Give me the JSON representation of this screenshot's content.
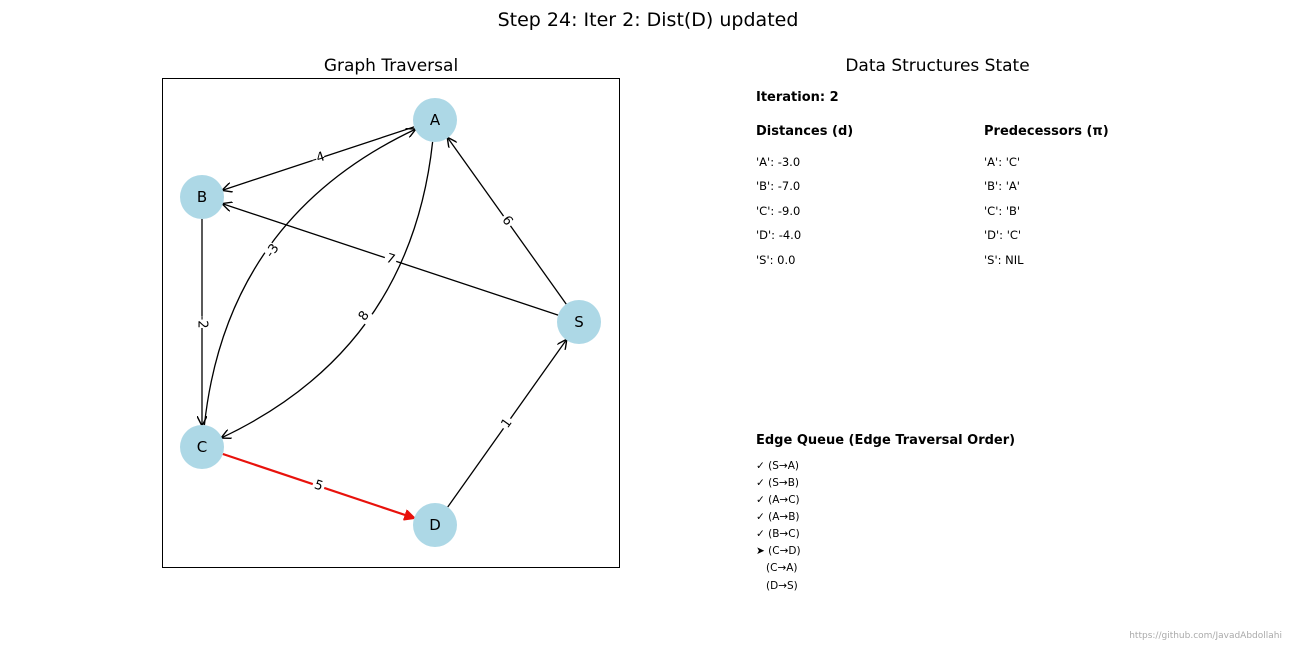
{
  "title": "Step 24: Iter 2: Dist(D) updated",
  "graph_panel": {
    "title": "Graph Traversal",
    "nodes": [
      {
        "id": "A"
      },
      {
        "id": "B"
      },
      {
        "id": "C"
      },
      {
        "id": "D"
      },
      {
        "id": "S"
      }
    ],
    "edges": [
      {
        "from": "A",
        "to": "B",
        "weight": "-4",
        "highlight": false
      },
      {
        "from": "A",
        "to": "C",
        "weight": "8",
        "highlight": false
      },
      {
        "from": "C",
        "to": "A",
        "weight": "-3",
        "highlight": false
      },
      {
        "from": "S",
        "to": "A",
        "weight": "6",
        "highlight": false
      },
      {
        "from": "S",
        "to": "B",
        "weight": "7",
        "highlight": false
      },
      {
        "from": "B",
        "to": "C",
        "weight": "-2",
        "highlight": false
      },
      {
        "from": "C",
        "to": "D",
        "weight": "5",
        "highlight": true
      },
      {
        "from": "D",
        "to": "S",
        "weight": "1",
        "highlight": false
      }
    ],
    "colors": {
      "node_fill": "#add8e6",
      "edge": "#000000",
      "highlight": "#e8120c"
    }
  },
  "ds_panel": {
    "title": "Data Structures State",
    "iteration_label": "Iteration: 2",
    "distances_header": "Distances (d)",
    "predecessors_header": "Predecessors (π)",
    "distances": [
      "'A': -3.0",
      "'B': -7.0",
      "'C': -9.0",
      "'D': -4.0",
      "'S': 0.0"
    ],
    "predecessors": [
      "'A': 'C'",
      "'B': 'A'",
      "'C': 'B'",
      "'D': 'C'",
      "'S': NIL"
    ],
    "queue_header": "Edge Queue (Edge Traversal Order)",
    "queue": [
      "✓ (S→A)",
      "✓ (S→B)",
      "✓ (A→C)",
      "✓ (A→B)",
      "✓ (B→C)",
      "➤ (C→D)",
      "   (C→A)",
      "   (D→S)"
    ]
  },
  "credit": "https://github.com/JavadAbdollahi"
}
